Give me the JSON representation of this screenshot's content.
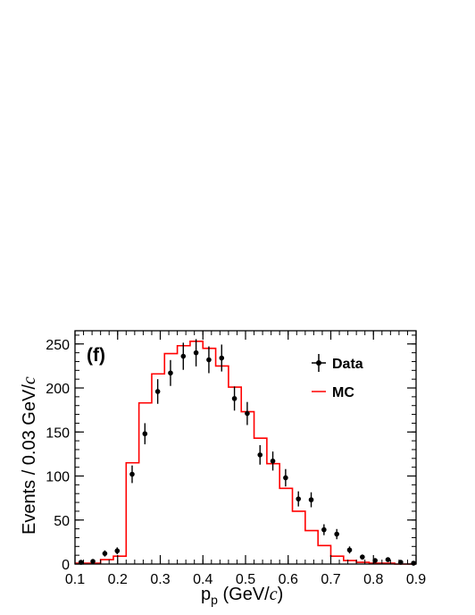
{
  "chart_data": {
    "type": "histogram",
    "panel_label": "(f)",
    "xlabel_main": "p",
    "xlabel_sub": "p",
    "xlabel_unit_prefix": " (GeV/",
    "xlabel_unit_c": "c",
    "xlabel_unit_suffix": ")",
    "ylabel_prefix": "Events / 0.03 GeV/",
    "ylabel_c": "c",
    "xlim": [
      0.1,
      0.9
    ],
    "ylim": [
      0,
      265
    ],
    "xticks": [
      0.1,
      0.2,
      0.3,
      0.4,
      0.5,
      0.6,
      0.7,
      0.8,
      0.9
    ],
    "xtick_labels": [
      "0.1",
      "0.2",
      "0.3",
      "0.4",
      "0.5",
      "0.6",
      "0.7",
      "0.8",
      "0.9"
    ],
    "yticks": [
      0,
      50,
      100,
      150,
      200,
      250
    ],
    "ytick_labels": [
      "0",
      "50",
      "100",
      "150",
      "200",
      "250"
    ],
    "legend": [
      {
        "name": "Data",
        "style": "points"
      },
      {
        "name": "MC",
        "style": "line",
        "color": "#ff0000"
      }
    ],
    "legend_position": "top-right",
    "data_points": [
      {
        "x": 0.114,
        "y": 2,
        "err": 1.4
      },
      {
        "x": 0.142,
        "y": 3,
        "err": 1.7
      },
      {
        "x": 0.17,
        "y": 12,
        "err": 3.5
      },
      {
        "x": 0.199,
        "y": 15,
        "err": 3.9
      },
      {
        "x": 0.234,
        "y": 102,
        "err": 10
      },
      {
        "x": 0.264,
        "y": 148,
        "err": 12
      },
      {
        "x": 0.294,
        "y": 196,
        "err": 14
      },
      {
        "x": 0.324,
        "y": 217,
        "err": 14.7
      },
      {
        "x": 0.354,
        "y": 236,
        "err": 15.4
      },
      {
        "x": 0.384,
        "y": 240,
        "err": 15.5
      },
      {
        "x": 0.414,
        "y": 232,
        "err": 15.2
      },
      {
        "x": 0.444,
        "y": 234,
        "err": 15.3
      },
      {
        "x": 0.474,
        "y": 188,
        "err": 13.7
      },
      {
        "x": 0.504,
        "y": 171,
        "err": 13.1
      },
      {
        "x": 0.534,
        "y": 124,
        "err": 11.1
      },
      {
        "x": 0.564,
        "y": 117,
        "err": 10.8
      },
      {
        "x": 0.594,
        "y": 98,
        "err": 9.9
      },
      {
        "x": 0.624,
        "y": 74,
        "err": 8.6
      },
      {
        "x": 0.654,
        "y": 73,
        "err": 8.5
      },
      {
        "x": 0.684,
        "y": 39,
        "err": 6.2
      },
      {
        "x": 0.714,
        "y": 34,
        "err": 5.8
      },
      {
        "x": 0.744,
        "y": 16,
        "err": 4
      },
      {
        "x": 0.774,
        "y": 8,
        "err": 2.8
      },
      {
        "x": 0.804,
        "y": 4,
        "err": 2
      },
      {
        "x": 0.834,
        "y": 5,
        "err": 2.2
      },
      {
        "x": 0.864,
        "y": 2,
        "err": 1.4
      },
      {
        "x": 0.894,
        "y": 1,
        "err": 1
      }
    ],
    "mc_edges": [
      0.1,
      0.13,
      0.16,
      0.19,
      0.22,
      0.25,
      0.28,
      0.31,
      0.34,
      0.37,
      0.4,
      0.43,
      0.46,
      0.49,
      0.52,
      0.55,
      0.58,
      0.61,
      0.64,
      0.67,
      0.7,
      0.73,
      0.76,
      0.79,
      0.82,
      0.85,
      0.88,
      0.9
    ],
    "mc_values": [
      1,
      1,
      5,
      9,
      115,
      183,
      216,
      239,
      248,
      253,
      245,
      225,
      201,
      173,
      143,
      114,
      86,
      60,
      38,
      21,
      9,
      4,
      2,
      1,
      1,
      0,
      0
    ]
  }
}
